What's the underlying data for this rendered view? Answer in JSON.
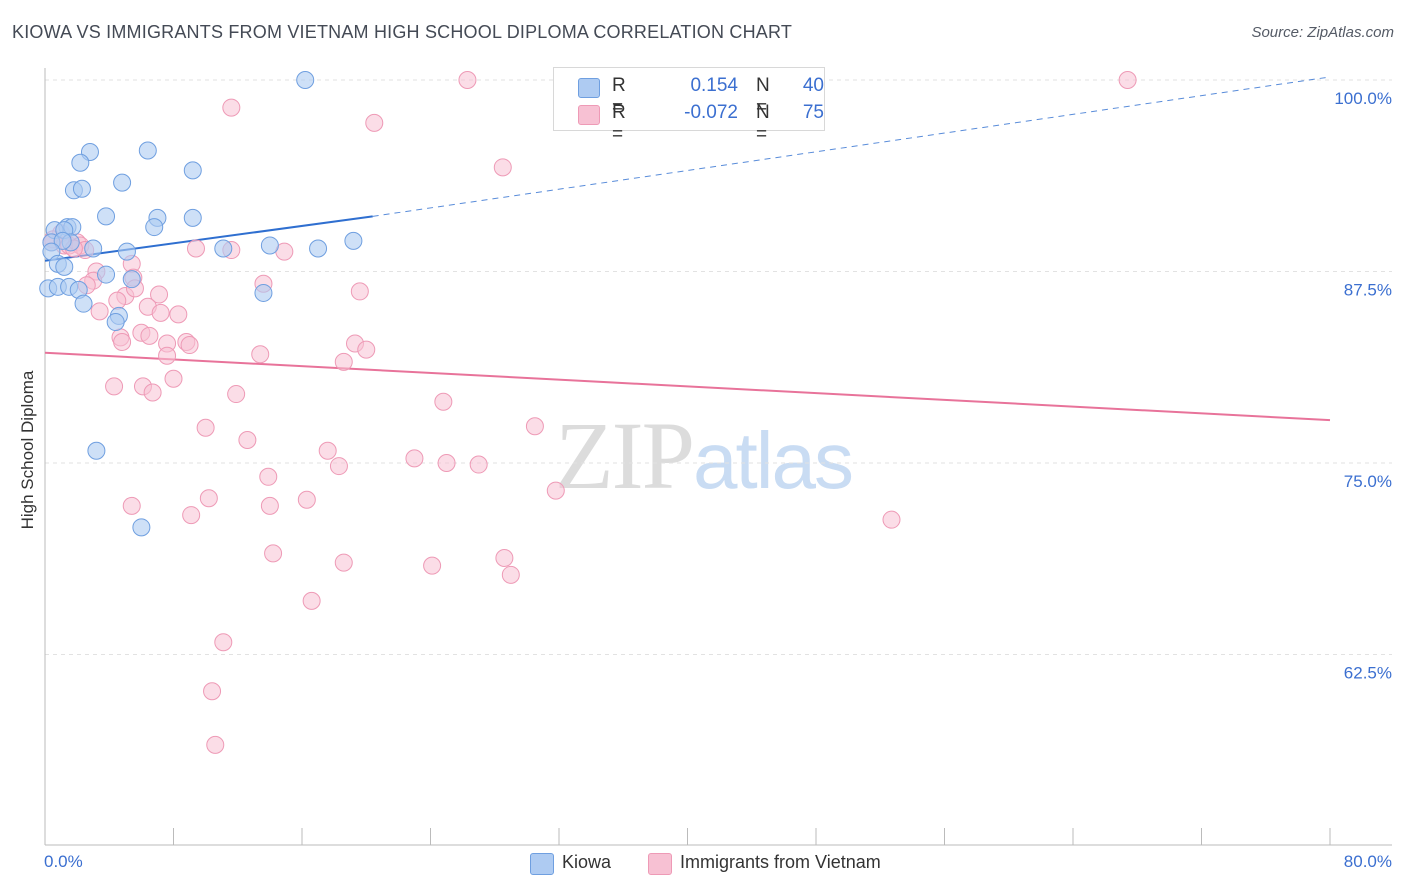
{
  "title": "KIOWA VS IMMIGRANTS FROM VIETNAM HIGH SCHOOL DIPLOMA CORRELATION CHART",
  "source": "Source: ZipAtlas.com",
  "watermark": {
    "zip": "ZIP",
    "atlas": "atlas"
  },
  "legend": {
    "r_label": "R =",
    "n_label": "N =",
    "rows": [
      {
        "r": "0.154",
        "n": "40"
      },
      {
        "r": "-0.072",
        "n": "75"
      }
    ]
  },
  "colors": {
    "kiowa_fill": "#aecbf2",
    "kiowa_stroke": "#6f9fe0",
    "kiowa_line": "#2f6fd0",
    "vietnam_fill": "#f7c1d3",
    "vietnam_stroke": "#ee9ab6",
    "vietnam_line": "#e8739a",
    "tick_label": "#3b6fd0",
    "grid": "#e2e2e2"
  },
  "chart_data": {
    "type": "scatter",
    "title": "KIOWA VS IMMIGRANTS FROM VIETNAM HIGH SCHOOL DIPLOMA CORRELATION CHART",
    "xlabel": "",
    "ylabel": "High School Diploma",
    "xlim": [
      0,
      80
    ],
    "ylim": [
      50,
      101
    ],
    "x_tick_labels": {
      "min": "0.0%",
      "max": "80.0%"
    },
    "y_ticks": [
      {
        "value": 100,
        "label": "100.0%"
      },
      {
        "value": 87.5,
        "label": "87.5%"
      },
      {
        "value": 75,
        "label": "75.0%"
      },
      {
        "value": 62.5,
        "label": "62.5%"
      }
    ],
    "x_minor_ticks": [
      8,
      16,
      24,
      32,
      40,
      48,
      56,
      64,
      72,
      80
    ],
    "series": [
      {
        "name": "Kiowa",
        "points": [
          [
            16.2,
            100.0
          ],
          [
            2.8,
            95.3
          ],
          [
            6.4,
            95.4
          ],
          [
            2.2,
            94.6
          ],
          [
            9.2,
            94.1
          ],
          [
            4.8,
            93.3
          ],
          [
            1.8,
            92.8
          ],
          [
            2.3,
            92.9
          ],
          [
            3.8,
            91.1
          ],
          [
            7.0,
            91.0
          ],
          [
            9.2,
            91.0
          ],
          [
            6.8,
            90.4
          ],
          [
            1.4,
            90.4
          ],
          [
            1.7,
            90.4
          ],
          [
            0.6,
            90.2
          ],
          [
            1.2,
            90.2
          ],
          [
            0.4,
            89.4
          ],
          [
            1.6,
            89.4
          ],
          [
            1.1,
            89.5
          ],
          [
            19.2,
            89.5
          ],
          [
            14.0,
            89.2
          ],
          [
            3.0,
            89.0
          ],
          [
            17.0,
            89.0
          ],
          [
            11.1,
            89.0
          ],
          [
            5.1,
            88.8
          ],
          [
            0.4,
            88.8
          ],
          [
            0.8,
            88.0
          ],
          [
            1.2,
            87.8
          ],
          [
            3.8,
            87.3
          ],
          [
            5.4,
            87.0
          ],
          [
            0.2,
            86.4
          ],
          [
            0.8,
            86.5
          ],
          [
            1.5,
            86.5
          ],
          [
            2.1,
            86.3
          ],
          [
            13.6,
            86.1
          ],
          [
            2.4,
            85.4
          ],
          [
            4.6,
            84.6
          ],
          [
            4.4,
            84.2
          ],
          [
            3.2,
            75.8
          ],
          [
            6.0,
            70.8
          ]
        ],
        "trend": {
          "x0": 0,
          "y0": 88.2,
          "x1": 20.4,
          "y1": 91.1,
          "dashed_to_x": 80,
          "dashed_to_y": 100.2
        }
      },
      {
        "name": "Immigrants from Vietnam",
        "points": [
          [
            26.3,
            100.0
          ],
          [
            67.4,
            100.0
          ],
          [
            11.6,
            98.2
          ],
          [
            20.5,
            97.2
          ],
          [
            28.5,
            94.3
          ],
          [
            1.0,
            90.0
          ],
          [
            0.5,
            89.6
          ],
          [
            0.4,
            89.4
          ],
          [
            1.2,
            89.2
          ],
          [
            1.5,
            89.2
          ],
          [
            2.0,
            89.4
          ],
          [
            2.2,
            89.2
          ],
          [
            2.5,
            88.9
          ],
          [
            1.8,
            89.0
          ],
          [
            9.4,
            89.0
          ],
          [
            11.6,
            88.9
          ],
          [
            14.9,
            88.8
          ],
          [
            5.4,
            88.0
          ],
          [
            3.2,
            87.5
          ],
          [
            3.0,
            86.9
          ],
          [
            5.5,
            87.1
          ],
          [
            13.6,
            86.7
          ],
          [
            19.6,
            86.2
          ],
          [
            7.1,
            86.0
          ],
          [
            5.0,
            85.9
          ],
          [
            6.4,
            85.2
          ],
          [
            3.4,
            84.9
          ],
          [
            7.2,
            84.8
          ],
          [
            8.3,
            84.7
          ],
          [
            6.0,
            83.5
          ],
          [
            4.7,
            83.2
          ],
          [
            4.8,
            82.9
          ],
          [
            8.8,
            82.9
          ],
          [
            9.0,
            82.7
          ],
          [
            19.3,
            82.8
          ],
          [
            7.6,
            82.8
          ],
          [
            7.6,
            82.0
          ],
          [
            13.4,
            82.1
          ],
          [
            18.6,
            81.6
          ],
          [
            8.0,
            80.5
          ],
          [
            4.3,
            80.0
          ],
          [
            6.1,
            80.0
          ],
          [
            6.7,
            79.6
          ],
          [
            11.9,
            79.5
          ],
          [
            24.8,
            79.0
          ],
          [
            10.0,
            77.3
          ],
          [
            30.5,
            77.4
          ],
          [
            12.6,
            76.5
          ],
          [
            17.6,
            75.8
          ],
          [
            23.0,
            75.3
          ],
          [
            25.0,
            75.0
          ],
          [
            27.0,
            74.9
          ],
          [
            18.3,
            74.8
          ],
          [
            13.9,
            74.1
          ],
          [
            31.8,
            73.2
          ],
          [
            10.2,
            72.7
          ],
          [
            16.3,
            72.6
          ],
          [
            5.4,
            72.2
          ],
          [
            14.0,
            72.2
          ],
          [
            9.1,
            71.6
          ],
          [
            52.7,
            71.3
          ],
          [
            14.2,
            69.1
          ],
          [
            28.6,
            68.8
          ],
          [
            18.6,
            68.5
          ],
          [
            24.1,
            68.3
          ],
          [
            29.0,
            67.7
          ],
          [
            16.6,
            66.0
          ],
          [
            11.1,
            63.3
          ],
          [
            10.4,
            60.1
          ],
          [
            10.6,
            56.6
          ],
          [
            5.6,
            86.4
          ],
          [
            2.6,
            86.6
          ],
          [
            6.5,
            83.3
          ],
          [
            20.0,
            82.4
          ],
          [
            4.5,
            85.6
          ]
        ],
        "trend": {
          "x0": 0,
          "y0": 82.2,
          "x1": 80,
          "y1": 77.8
        }
      }
    ]
  },
  "y_axis_label": "High School Diploma",
  "bottom_legend": [
    {
      "label": "Kiowa"
    },
    {
      "label": "Immigrants from Vietnam"
    }
  ]
}
